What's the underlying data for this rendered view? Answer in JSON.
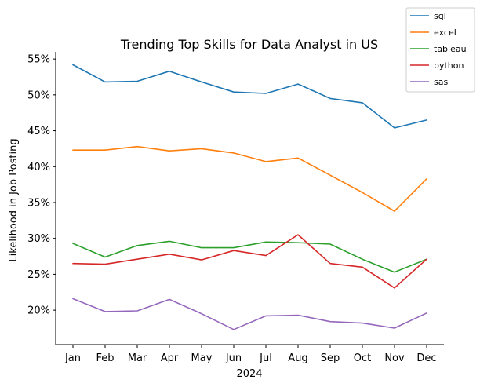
{
  "chart_data": {
    "type": "line",
    "title": "Trending Top Skills for Data Analyst in US",
    "xlabel": "2024",
    "ylabel": "Likelihood in Job Posting",
    "categories": [
      "Jan",
      "Feb",
      "Mar",
      "Apr",
      "May",
      "Jun",
      "Jul",
      "Aug",
      "Sep",
      "Oct",
      "Nov",
      "Dec"
    ],
    "yticks": [
      20,
      25,
      30,
      35,
      40,
      45,
      50,
      55
    ],
    "ytick_labels": [
      "20%",
      "25%",
      "30%",
      "35%",
      "40%",
      "45%",
      "50%",
      "55%"
    ],
    "ylim": [
      15.2,
      56
    ],
    "grid": false,
    "legend_position": "top-right",
    "series": [
      {
        "name": "sql",
        "color": "#1f77b4",
        "values": [
          54.2,
          51.8,
          51.9,
          53.3,
          51.8,
          50.4,
          50.2,
          51.5,
          49.5,
          48.9,
          45.4,
          46.5
        ]
      },
      {
        "name": "excel",
        "color": "#ff7f0e",
        "values": [
          42.3,
          42.3,
          42.8,
          42.2,
          42.5,
          41.9,
          40.7,
          41.2,
          38.8,
          36.4,
          33.8,
          38.3
        ]
      },
      {
        "name": "tableau",
        "color": "#2ca02c",
        "values": [
          29.3,
          27.4,
          29.0,
          29.6,
          28.7,
          28.7,
          29.5,
          29.4,
          29.2,
          27.1,
          25.3,
          27.1
        ]
      },
      {
        "name": "python",
        "color": "#d62728",
        "values": [
          26.5,
          26.4,
          27.1,
          27.8,
          27.0,
          28.3,
          27.6,
          30.5,
          26.5,
          26.0,
          23.1,
          27.1
        ]
      },
      {
        "name": "sas",
        "color": "#9467bd",
        "values": [
          21.6,
          19.8,
          19.9,
          21.5,
          19.5,
          17.3,
          19.2,
          19.3,
          18.4,
          18.2,
          17.5,
          19.6
        ]
      }
    ]
  }
}
